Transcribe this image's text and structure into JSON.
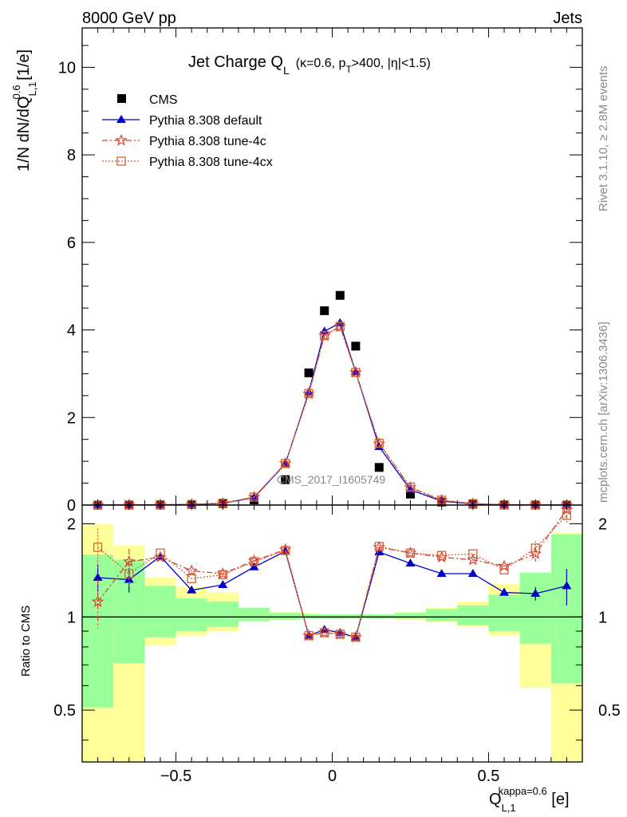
{
  "header": {
    "left": "8000 GeV pp",
    "right": "Jets"
  },
  "side_labels": {
    "rivet": "Rivet 3.1.10, ≥ 2.8M events",
    "mcplots": "mcplots.cern.ch [arXiv:1306.3436]"
  },
  "watermark": "CMS_2017_I1605749",
  "title": {
    "main": "Jet Charge Q",
    "main_sub": "L",
    "cuts": "(κ=0.6, p",
    "cuts_sub": "T",
    "cuts_tail": ">400, |η|<1.5)"
  },
  "labels": {
    "ylabel_top": "1/N dN/dQ",
    "ylabel_sup": "0.6",
    "ylabel_sub": "L,1",
    "ylabel_unit": " [1/e]",
    "ylabel_bottom": "Ratio to CMS",
    "xlabel": "Q",
    "xlabel_sup": "kappa=0.6",
    "xlabel_sub": "L,1",
    "xlabel_unit": " [e]"
  },
  "colors": {
    "cms": "#000000",
    "default": "#0000cc",
    "tune4c": "#e03c32",
    "tune4cx": "#cc6633",
    "band_inner": "#99ff99",
    "band_outer": "#ffff99"
  },
  "chart_data": [
    {
      "type": "line",
      "title": "Jet Charge Q_L (κ=0.6, p_T>400, |η|<1.5)",
      "xlim": [
        -0.8,
        0.8
      ],
      "ylim": [
        0,
        10.9
      ],
      "y_ticks": [
        0,
        2,
        4,
        6,
        8,
        10
      ],
      "x": [
        -0.75,
        -0.65,
        -0.55,
        -0.45,
        -0.35,
        -0.25,
        -0.15,
        -0.075,
        -0.025,
        0.025,
        0.075,
        0.15,
        0.25,
        0.35,
        0.45,
        0.55,
        0.65,
        0.75
      ],
      "series": [
        {
          "name": "CMS",
          "style": "marker-square",
          "values": [
            0.0004,
            0.0012,
            0.004,
            0.01,
            0.03,
            0.12,
            0.58,
            3.02,
            4.44,
            4.79,
            3.63,
            0.86,
            0.25,
            0.07,
            0.02,
            0.005,
            0.0015,
            0.0004
          ]
        },
        {
          "name": "Pythia 8.308 default",
          "style": "solid-triangle",
          "values": [
            0.0005,
            0.0017,
            0.006,
            0.012,
            0.039,
            0.17,
            0.94,
            2.58,
            3.97,
            4.16,
            3.04,
            1.33,
            0.35,
            0.09,
            0.026,
            0.006,
            0.0017,
            0.0005
          ]
        },
        {
          "name": "Pythia 8.308 tune-4c",
          "style": "dashdot-star",
          "values": [
            0.0004,
            0.0018,
            0.006,
            0.014,
            0.042,
            0.18,
            0.95,
            2.54,
            3.87,
            4.08,
            3.03,
            1.4,
            0.4,
            0.11,
            0.031,
            0.0075,
            0.0024,
            0.0009
          ]
        },
        {
          "name": "Pythia 8.308 tune-4cx",
          "style": "dotted-opensquare",
          "values": [
            0.0006,
            0.0016,
            0.0065,
            0.013,
            0.041,
            0.18,
            0.95,
            2.55,
            3.87,
            4.08,
            3.03,
            1.41,
            0.41,
            0.11,
            0.032,
            0.0072,
            0.0025,
            0.0009
          ]
        }
      ],
      "legend_position": "top-left"
    },
    {
      "type": "line",
      "title": "",
      "ylabel": "Ratio to CMS",
      "xlim": [
        -0.8,
        0.8
      ],
      "ylim": [
        0.34,
        2.3
      ],
      "y_scale": "log",
      "y_ticks": [
        0.5,
        1,
        2
      ],
      "x_ticks": [
        -0.5,
        0,
        0.5
      ],
      "reference_line": 1,
      "band_edges": [
        -0.8,
        -0.7,
        -0.6,
        -0.5,
        -0.4,
        -0.3,
        -0.2,
        -0.1,
        -0.05,
        0,
        0.05,
        0.1,
        0.2,
        0.3,
        0.4,
        0.5,
        0.6,
        0.7,
        0.8
      ],
      "band_inner_hi": [
        1.59,
        1.53,
        1.26,
        1.15,
        1.12,
        1.07,
        1.03,
        1.02,
        1.02,
        1.02,
        1.02,
        1.02,
        1.03,
        1.06,
        1.09,
        1.18,
        1.39,
        1.85
      ],
      "band_inner_lo": [
        0.51,
        0.71,
        0.86,
        0.9,
        0.93,
        0.97,
        0.98,
        0.99,
        0.99,
        0.99,
        0.99,
        0.99,
        0.99,
        0.97,
        0.94,
        0.9,
        0.82,
        0.61
      ],
      "band_outer_hi": [
        2.0,
        1.7,
        1.34,
        1.25,
        1.2,
        1.07,
        1.04,
        1.03,
        1.02,
        1.02,
        1.02,
        1.02,
        1.04,
        1.07,
        1.12,
        1.28,
        1.39,
        1.87
      ],
      "band_outer_lo": [
        0.34,
        0.34,
        0.81,
        0.87,
        0.9,
        0.97,
        0.98,
        0.99,
        0.99,
        0.99,
        0.99,
        0.99,
        0.98,
        0.96,
        0.93,
        0.87,
        0.59,
        0.34
      ],
      "series": [
        {
          "name": "Pythia 8.308 default",
          "values": [
            1.34,
            1.32,
            1.57,
            1.22,
            1.27,
            1.45,
            1.63,
            0.87,
            0.91,
            0.89,
            0.86,
            1.62,
            1.49,
            1.38,
            1.38,
            1.2,
            1.19,
            1.26
          ],
          "err_lo": [
            0.13,
            0.12,
            0,
            0,
            0,
            0,
            0,
            0,
            0,
            0,
            0,
            0,
            0,
            0,
            0,
            0,
            0.06,
            0.17
          ],
          "err_hi": [
            0.13,
            0.12,
            0,
            0,
            0,
            0,
            0,
            0,
            0,
            0,
            0,
            0,
            0,
            0,
            0,
            0,
            0.06,
            0.17
          ]
        },
        {
          "name": "Pythia 8.308 tune-4c",
          "values": [
            1.12,
            1.51,
            1.56,
            1.41,
            1.38,
            1.52,
            1.65,
            0.87,
            0.89,
            0.88,
            0.86,
            1.68,
            1.61,
            1.56,
            1.53,
            1.46,
            1.6,
            2.22
          ],
          "err_lo": [
            0.2,
            0.15,
            0,
            0,
            0,
            0,
            0,
            0,
            0,
            0,
            0,
            0,
            0,
            0,
            0,
            0,
            0.09,
            0.12
          ],
          "err_hi": [
            0.2,
            0.15,
            0,
            0,
            0,
            0,
            0,
            0,
            0,
            0,
            0,
            0,
            0,
            0,
            0,
            0,
            0.09,
            0.12
          ]
        },
        {
          "name": "Pythia 8.308 tune-4cx",
          "values": [
            1.68,
            1.38,
            1.61,
            1.33,
            1.37,
            1.51,
            1.64,
            0.87,
            0.89,
            0.88,
            0.86,
            1.69,
            1.61,
            1.58,
            1.6,
            1.42,
            1.67,
            2.13
          ],
          "err_lo": [
            0.25,
            0.12,
            0,
            0,
            0,
            0,
            0,
            0,
            0,
            0,
            0,
            0,
            0,
            0,
            0,
            0,
            0.09,
            0.12
          ],
          "err_hi": [
            0.25,
            0.12,
            0,
            0,
            0,
            0,
            0,
            0,
            0,
            0,
            0,
            0,
            0,
            0,
            0,
            0,
            0.09,
            0.12
          ]
        }
      ]
    }
  ]
}
